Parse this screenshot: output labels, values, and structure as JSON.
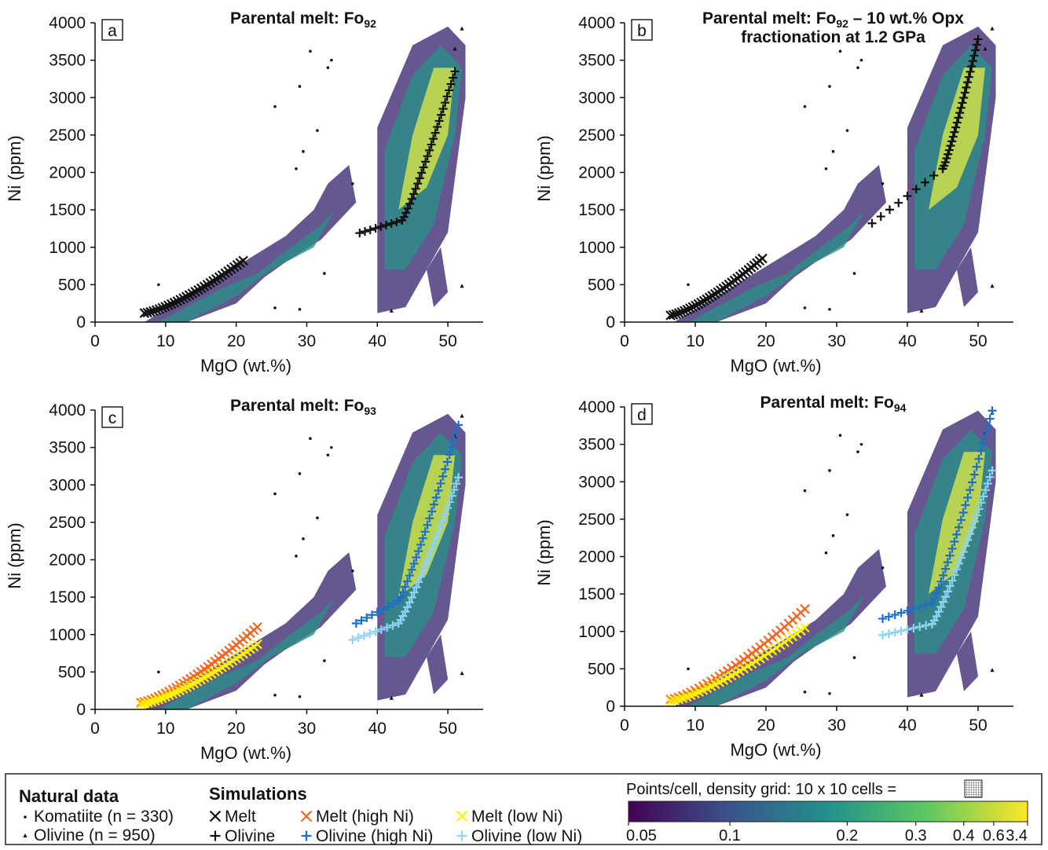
{
  "chart_data": [
    {
      "type": "scatter",
      "panel_label": "a",
      "title": {
        "prefix": "Parental melt: Fo",
        "sub": "92",
        "suffix": "",
        "line2": ""
      },
      "xlabel": "MgO (wt.%)",
      "ylabel": "Ni (ppm)",
      "xlim": [
        0,
        55
      ],
      "ylim": [
        0,
        4000
      ],
      "xticks": [
        0,
        10,
        20,
        30,
        40,
        50
      ],
      "yticks": [
        0,
        500,
        1000,
        1500,
        2000,
        2500,
        3000,
        3500,
        4000
      ],
      "series": [
        {
          "name": "Melt",
          "marker": "x",
          "color": "#111111",
          "x_range": [
            7,
            21
          ],
          "y_range": [
            120,
            820
          ]
        },
        {
          "name": "Olivine",
          "marker": "+",
          "color": "#111111",
          "segments": [
            [
              37.5,
              1190,
              43.5,
              1360
            ],
            [
              43.5,
              1360,
              51,
              3350
            ]
          ]
        }
      ]
    },
    {
      "type": "scatter",
      "panel_label": "b",
      "title": {
        "prefix": "Parental melt: Fo",
        "sub": "92",
        "suffix": " – 10 wt.% Opx",
        "line2": "fractionation at 1.2 GPa"
      },
      "xlabel": "MgO (wt.%)",
      "ylabel": "Ni (ppm)",
      "xlim": [
        0,
        55
      ],
      "ylim": [
        0,
        4000
      ],
      "xticks": [
        0,
        10,
        20,
        30,
        40,
        50
      ],
      "yticks": [
        0,
        500,
        1000,
        1500,
        2000,
        2500,
        3000,
        3500,
        4000
      ],
      "series": [
        {
          "name": "Melt",
          "marker": "x",
          "color": "#111111",
          "x_range": [
            6.5,
            19.5
          ],
          "y_range": [
            90,
            850
          ]
        },
        {
          "name": "Olivine",
          "marker": "+",
          "color": "#111111",
          "segments": [
            [
              35,
              1320,
              45,
              2050
            ],
            [
              45,
              2050,
              50,
              3780
            ]
          ]
        }
      ]
    },
    {
      "type": "scatter",
      "panel_label": "c",
      "title": {
        "prefix": "Parental melt: Fo",
        "sub": "93",
        "suffix": "",
        "line2": ""
      },
      "xlabel": "MgO (wt.%)",
      "ylabel": "Ni (ppm)",
      "xlim": [
        0,
        55
      ],
      "ylim": [
        0,
        4000
      ],
      "xticks": [
        0,
        10,
        20,
        30,
        40,
        50
      ],
      "yticks": [
        0,
        500,
        1000,
        1500,
        2000,
        2500,
        3000,
        3500,
        4000
      ],
      "series": [
        {
          "name": "Melt (high Ni)",
          "marker": "x",
          "color": "#f26522",
          "x_range": [
            6.5,
            23
          ],
          "y_range": [
            90,
            1100
          ]
        },
        {
          "name": "Melt (low Ni)",
          "marker": "x",
          "color": "#fff200",
          "x_range": [
            6.5,
            23
          ],
          "y_range": [
            70,
            870
          ]
        },
        {
          "name": "Olivine (high Ni)",
          "marker": "+",
          "color": "#1f6fc6",
          "segments": [
            [
              37,
              1150,
              43,
              1450
            ],
            [
              43,
              1450,
              51.5,
              3800
            ]
          ]
        },
        {
          "name": "Olivine (low Ni)",
          "marker": "+",
          "color": "#8fd3f4",
          "segments": [
            [
              36.5,
              930,
              43,
              1150
            ],
            [
              43,
              1150,
              51.5,
              3100
            ]
          ]
        }
      ]
    },
    {
      "type": "scatter",
      "panel_label": "d",
      "title": {
        "prefix": "Parental melt: Fo",
        "sub": "94",
        "suffix": "",
        "line2": ""
      },
      "xlabel": "MgO (wt.%)",
      "ylabel": "Ni (ppm)",
      "xlim": [
        0,
        55
      ],
      "ylim": [
        0,
        4000
      ],
      "xticks": [
        0,
        10,
        20,
        30,
        40,
        50
      ],
      "yticks": [
        0,
        500,
        1000,
        1500,
        2000,
        2500,
        3000,
        3500,
        4000
      ],
      "series": [
        {
          "name": "Melt (high Ni)",
          "marker": "x",
          "color": "#f26522",
          "x_range": [
            6.5,
            25.5
          ],
          "y_range": [
            90,
            1300
          ]
        },
        {
          "name": "Melt (low Ni)",
          "marker": "x",
          "color": "#fff200",
          "x_range": [
            6.5,
            25.5
          ],
          "y_range": [
            70,
            1050
          ]
        },
        {
          "name": "Olivine (high Ni)",
          "marker": "+",
          "color": "#1f6fc6",
          "segments": [
            [
              36.5,
              1170,
              43.5,
              1380
            ],
            [
              43.5,
              1380,
              52,
              3950
            ]
          ]
        },
        {
          "name": "Olivine (low Ni)",
          "marker": "+",
          "color": "#8fd3f4",
          "segments": [
            [
              36.5,
              950,
              43.5,
              1100
            ],
            [
              43.5,
              1100,
              52,
              3150
            ]
          ]
        }
      ]
    }
  ],
  "background": {
    "komatiite_points": [
      [
        9,
        500
      ],
      [
        25.5,
        2880
      ],
      [
        29,
        3150
      ],
      [
        30.5,
        3620
      ],
      [
        29.5,
        2280
      ],
      [
        31.5,
        2560
      ],
      [
        33,
        3400
      ],
      [
        32.5,
        650
      ],
      [
        25.5,
        190
      ],
      [
        29,
        170
      ],
      [
        36.5,
        1850
      ],
      [
        33.5,
        3500
      ],
      [
        28.5,
        2050
      ]
    ],
    "olivine_points": [
      [
        42,
        150
      ],
      [
        52,
        3920
      ],
      [
        52,
        480
      ],
      [
        51,
        3650
      ]
    ],
    "density_regions": [
      {
        "level": 0,
        "poly": [
          [
            7,
            0
          ],
          [
            21,
            800
          ],
          [
            27,
            1150
          ],
          [
            31,
            1500
          ],
          [
            33,
            1850
          ],
          [
            36,
            2100
          ],
          [
            37,
            1600
          ],
          [
            32,
            1100
          ],
          [
            27,
            800
          ],
          [
            24,
            600
          ],
          [
            20,
            250
          ],
          [
            13,
            0
          ]
        ]
      },
      {
        "level": 1,
        "poly": [
          [
            9,
            0
          ],
          [
            18,
            450
          ],
          [
            23,
            650
          ],
          [
            27,
            950
          ],
          [
            32,
            1300
          ],
          [
            34,
            1500
          ],
          [
            31,
            1000
          ],
          [
            25,
            700
          ],
          [
            20,
            350
          ],
          [
            13,
            0
          ]
        ]
      },
      {
        "level": 0,
        "poly": [
          [
            40,
            300
          ],
          [
            40,
            2600
          ],
          [
            45,
            3700
          ],
          [
            50,
            3950
          ],
          [
            52.5,
            3700
          ],
          [
            52.5,
            3000
          ],
          [
            50,
            1200
          ],
          [
            44,
            200
          ],
          [
            40,
            120
          ]
        ]
      },
      {
        "level": 1,
        "poly": [
          [
            41,
            700
          ],
          [
            41,
            2300
          ],
          [
            45,
            3300
          ],
          [
            49,
            3700
          ],
          [
            52,
            3400
          ],
          [
            51,
            2500
          ],
          [
            48,
            1300
          ],
          [
            44,
            700
          ]
        ]
      },
      {
        "level": 2,
        "poly": [
          [
            43,
            1500
          ],
          [
            45,
            2500
          ],
          [
            48,
            3400
          ],
          [
            51,
            3400
          ],
          [
            50,
            2500
          ],
          [
            47,
            1800
          ]
        ]
      },
      {
        "level": 0,
        "poly": [
          [
            48,
            200
          ],
          [
            47,
            700
          ],
          [
            49,
            1000
          ],
          [
            50,
            400
          ]
        ]
      }
    ]
  },
  "legend": {
    "natural": {
      "heading": "Natural data",
      "items": [
        {
          "label": "Komatiite (n = 330)",
          "marker": "dot"
        },
        {
          "label": "Olivine (n = 950)",
          "marker": "triangle"
        }
      ]
    },
    "simulations": {
      "heading": "Simulations",
      "items": [
        {
          "label": "Melt",
          "marker": "x",
          "color": "#111111"
        },
        {
          "label": "Olivine",
          "marker": "+",
          "color": "#111111"
        },
        {
          "label": "Melt (high Ni)",
          "marker": "x",
          "color": "#f26522"
        },
        {
          "label": "Olivine (high Ni)",
          "marker": "+",
          "color": "#1f6fc6"
        },
        {
          "label": "Melt (low Ni)",
          "marker": "x",
          "color": "#fff200"
        },
        {
          "label": "Olivine (low Ni)",
          "marker": "+",
          "color": "#8fd3f4"
        }
      ]
    },
    "colorbar": {
      "label": "Points/cell, density grid: 10 x 10 cells =",
      "ticks": [
        "0.05",
        "0.1",
        "0.2",
        "0.3",
        "0.4",
        "0.6",
        "3.4"
      ],
      "tick_values": [
        0.05,
        0.1,
        0.2,
        0.3,
        0.4,
        0.6,
        3.4
      ],
      "colors": [
        "#440154",
        "#3b528b",
        "#21918c",
        "#5ec962",
        "#fde725"
      ]
    }
  }
}
